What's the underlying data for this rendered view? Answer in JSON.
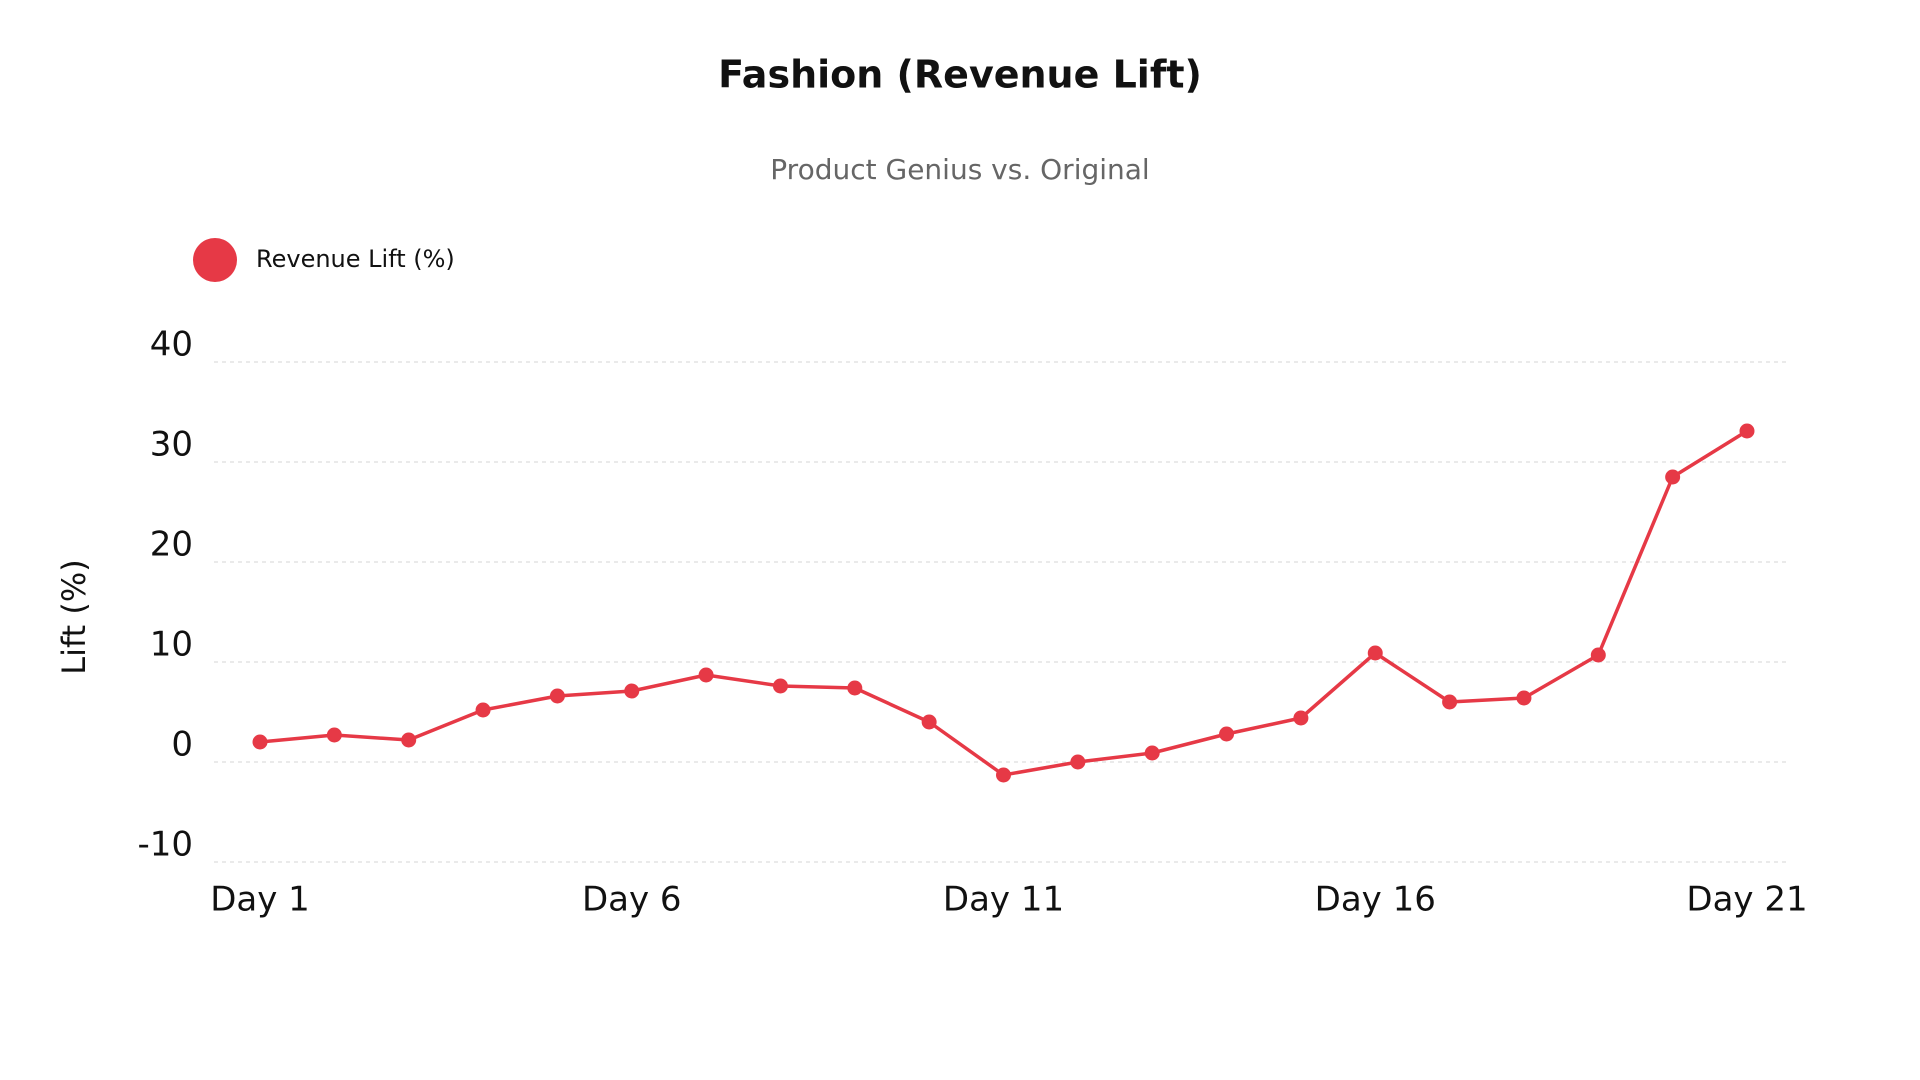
{
  "chart_data": {
    "type": "line",
    "title": "Fashion (Revenue Lift)",
    "subtitle": "Product Genius vs. Original",
    "y_label": "Lift (%)",
    "categories": [
      "Day 1",
      null,
      null,
      null,
      null,
      "Day 6",
      null,
      null,
      null,
      null,
      "Day 11",
      null,
      null,
      null,
      null,
      "Day 16",
      null,
      null,
      null,
      null,
      "Day 21"
    ],
    "series": [
      {
        "name": "Revenue Lift (%)",
        "color": "#e63946",
        "values": [
          2.0,
          2.7,
          2.2,
          5.2,
          6.6,
          7.1,
          8.7,
          7.6,
          7.4,
          4.0,
          -1.3,
          0.0,
          0.9,
          2.8,
          4.4,
          10.9,
          6.0,
          6.4,
          10.7,
          28.5,
          33.1
        ]
      }
    ],
    "ylim": [
      -10,
      40
    ],
    "yticks": [
      -10,
      0,
      10,
      20,
      30,
      40
    ],
    "grid": true,
    "legend": "top-left"
  }
}
